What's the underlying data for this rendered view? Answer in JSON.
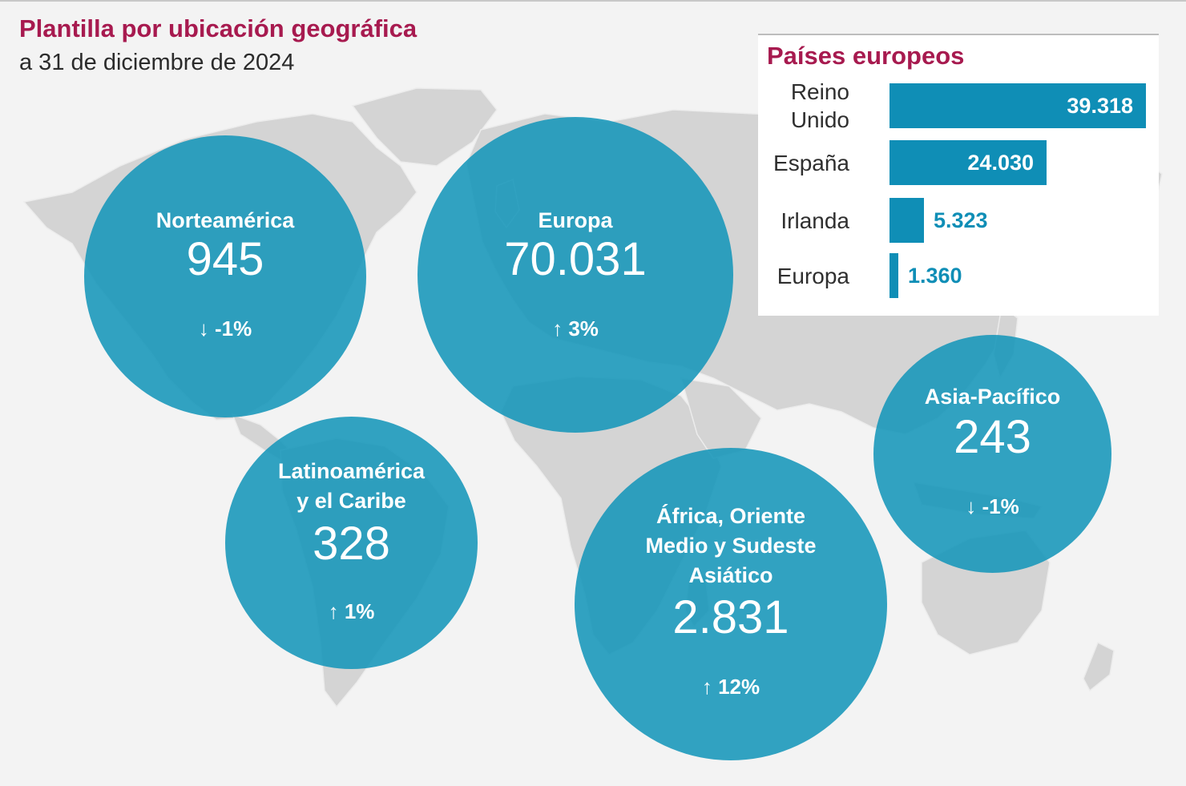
{
  "header": {
    "title": "Plantilla por ubicación geográfica",
    "subtitle": "a 31 de diciembre de 2024"
  },
  "colors": {
    "title": "#a71a4f",
    "circle": "#1696b9",
    "bar": "#0f8eb6",
    "map": "#d2d2d2",
    "background": "#f3f3f3"
  },
  "regions": [
    {
      "name": "Norteamérica",
      "value": "945",
      "change": "↓ -1%"
    },
    {
      "name": "Europa",
      "value": "70.031",
      "change": "↑ 3%"
    },
    {
      "name": "Latinoamérica\ny el Caribe",
      "value": "328",
      "change": "↑ 1%"
    },
    {
      "name": "África, Oriente\nMedio y Sudeste\nAsiático",
      "value": "2.831",
      "change": "↑ 12%"
    },
    {
      "name": "Asia-Pacífico",
      "value": "243",
      "change": "↓ -1%"
    }
  ],
  "chart_data": {
    "type": "bar",
    "orientation": "horizontal",
    "title": "Países europeos",
    "categories": [
      "Reino\nUnido",
      "España",
      "Irlanda",
      "Europa"
    ],
    "values": [
      39318,
      24030,
      5323,
      1360
    ],
    "value_labels": [
      "39.318",
      "24.030",
      "5.323",
      "1.360"
    ]
  }
}
